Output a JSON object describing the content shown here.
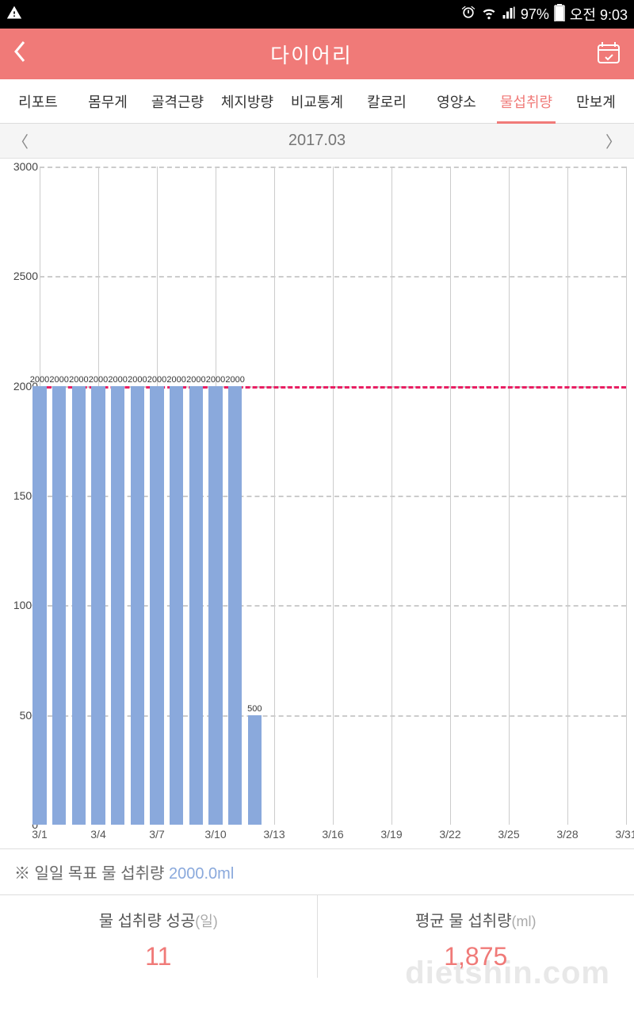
{
  "status": {
    "battery": "97%",
    "time": "오전 9:03"
  },
  "header": {
    "title": "다이어리"
  },
  "tabs": {
    "items": [
      {
        "label": "리포트"
      },
      {
        "label": "몸무게"
      },
      {
        "label": "골격근량"
      },
      {
        "label": "체지방량"
      },
      {
        "label": "비교통계"
      },
      {
        "label": "칼로리"
      },
      {
        "label": "영양소"
      },
      {
        "label": "물섭취량"
      },
      {
        "label": "만보계"
      }
    ],
    "active_index": 7
  },
  "date_nav": {
    "label": "2017.03"
  },
  "chart": {
    "type": "bar",
    "ylim": [
      0,
      3000
    ],
    "ytick_step": 500,
    "yticks": [
      0,
      500,
      1000,
      1500,
      2000,
      2500,
      3000
    ],
    "goal_value": 2000,
    "goal_color": "#e91e63",
    "bar_color": "#8aa9dc",
    "grid_color": "#cccccc",
    "background_color": "#ffffff",
    "days_in_month": 31,
    "x_tick_labels": [
      "3/1",
      "3/4",
      "3/7",
      "3/10",
      "3/13",
      "3/16",
      "3/19",
      "3/22",
      "3/25",
      "3/28",
      "3/31"
    ],
    "x_tick_days": [
      1,
      4,
      7,
      10,
      13,
      16,
      19,
      22,
      25,
      28,
      31
    ],
    "data": [
      {
        "day": 1,
        "value": 2000
      },
      {
        "day": 2,
        "value": 2000
      },
      {
        "day": 3,
        "value": 2000
      },
      {
        "day": 4,
        "value": 2000
      },
      {
        "day": 5,
        "value": 2000
      },
      {
        "day": 6,
        "value": 2000
      },
      {
        "day": 7,
        "value": 2000
      },
      {
        "day": 8,
        "value": 2000
      },
      {
        "day": 9,
        "value": 2000
      },
      {
        "day": 10,
        "value": 2000
      },
      {
        "day": 11,
        "value": 2000
      },
      {
        "day": 12,
        "value": 500
      }
    ],
    "label_fontsize": 11,
    "axis_fontsize": 14
  },
  "goal_note": {
    "prefix": "※ 일일 목표 물 섭취량 ",
    "value": "2000.0ml"
  },
  "stats": {
    "success": {
      "title": "물 섭취량 성공",
      "unit": "(일)",
      "value": "11"
    },
    "average": {
      "title": "평균 물 섭취량",
      "unit": "(ml)",
      "value": "1,875"
    }
  },
  "watermark": "dietshin.com",
  "colors": {
    "accent": "#f07a78",
    "bar": "#8aa9dc",
    "text": "#333333"
  }
}
